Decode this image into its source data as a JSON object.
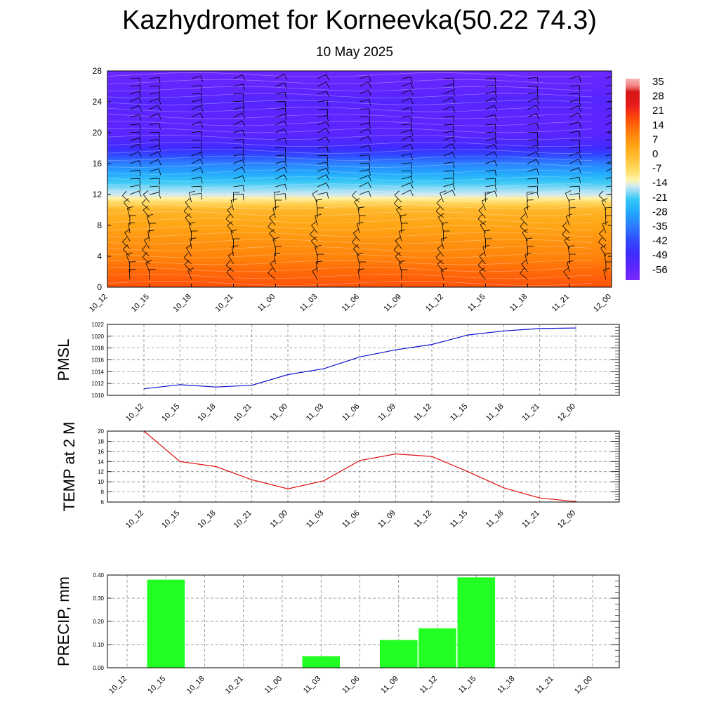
{
  "page": {
    "title": "Kazhydromet for Korneevka(50.22 74.3)",
    "subtitle": "10 May 2025"
  },
  "chart_data": [
    {
      "type": "heatmap",
      "name": "temperature-wind-cross-section",
      "x_categories": [
        "10_12",
        "10_15",
        "10_18",
        "10_21",
        "11_00",
        "11_03",
        "11_06",
        "11_09",
        "11_12",
        "11_15",
        "11_18",
        "11_21",
        "12_00"
      ],
      "ylim": [
        0,
        28
      ],
      "y_ticks": [
        0,
        4,
        8,
        12,
        16,
        20,
        24,
        28
      ],
      "colorbar_labels": [
        "35",
        "28",
        "21",
        "14",
        "7",
        "0",
        "-7",
        "-14",
        "-21",
        "-28",
        "-35",
        "-42",
        "-49",
        "-56"
      ],
      "colorbar_range": [
        -63,
        42
      ],
      "approx_temperature_profile": [
        {
          "level": 0,
          "value": 20
        },
        {
          "level": 2,
          "value": 17
        },
        {
          "level": 4,
          "value": 13
        },
        {
          "level": 6,
          "value": 10
        },
        {
          "level": 8,
          "value": 7
        },
        {
          "level": 10,
          "value": 3
        },
        {
          "level": 11.5,
          "value": -10
        },
        {
          "level": 12,
          "value": -14
        },
        {
          "level": 13,
          "value": -18
        },
        {
          "level": 14,
          "value": -23
        },
        {
          "level": 15,
          "value": -29
        },
        {
          "level": 16,
          "value": -34
        },
        {
          "level": 17,
          "value": -42
        },
        {
          "level": 18,
          "value": -50
        },
        {
          "level": 20,
          "value": -56
        },
        {
          "level": 22,
          "value": -57
        },
        {
          "level": 24,
          "value": -55
        },
        {
          "level": 26,
          "value": -58
        },
        {
          "level": 28,
          "value": -60
        }
      ],
      "wind_barbs": true,
      "colors": {
        "warm": "#e8141b",
        "mid": "#ffe070",
        "cold": "#2f4cff",
        "coldest": "#7a28ff"
      }
    },
    {
      "type": "line",
      "name": "pmsl",
      "ylabel": "PMSL",
      "categories": [
        "10_12",
        "10_15",
        "10_18",
        "10_21",
        "11_00",
        "11_03",
        "11_06",
        "11_09",
        "11_12",
        "11_15",
        "11_18",
        "11_21",
        "12_00"
      ],
      "values": [
        1011.1,
        1011.8,
        1011.4,
        1011.7,
        1013.5,
        1014.5,
        1016.5,
        1017.7,
        1018.6,
        1020.2,
        1020.9,
        1021.3,
        1021.4
      ],
      "ylim": [
        1010,
        1022
      ],
      "y_ticks": [
        1010,
        1012,
        1014,
        1016,
        1018,
        1020,
        1022
      ],
      "color": "#1010d0",
      "grid": true
    },
    {
      "type": "line",
      "name": "temp-2m",
      "ylabel": "TEMP at 2 M",
      "categories": [
        "10_12",
        "10_15",
        "10_18",
        "10_21",
        "11_00",
        "11_03",
        "11_06",
        "11_09",
        "11_12",
        "11_15",
        "11_18",
        "11_21",
        "12_00"
      ],
      "values": [
        20,
        14,
        13,
        10.4,
        8.6,
        10.2,
        14.2,
        15.5,
        15,
        12,
        8.8,
        6.8,
        6.1
      ],
      "ylim": [
        6,
        20
      ],
      "y_ticks": [
        6,
        8,
        10,
        12,
        14,
        16,
        18,
        20
      ],
      "color": "#e01010",
      "grid": true
    },
    {
      "type": "bar",
      "name": "precip",
      "ylabel": "PRECIP, mm",
      "categories": [
        "10_12",
        "10_15",
        "10_18",
        "10_21",
        "11_00",
        "11_03",
        "11_06",
        "11_09",
        "11_12",
        "11_15",
        "11_18",
        "11_21",
        "12_00"
      ],
      "values": [
        0,
        0.38,
        0,
        0,
        0,
        0.05,
        0,
        0.12,
        0.17,
        0.39,
        0,
        0,
        0
      ],
      "ylim": [
        0,
        0.4
      ],
      "y_tick_labels": [
        "0.00",
        "0.10",
        "0.20",
        "0.30",
        "0.40"
      ],
      "color": "#22ff22",
      "grid": true
    }
  ]
}
